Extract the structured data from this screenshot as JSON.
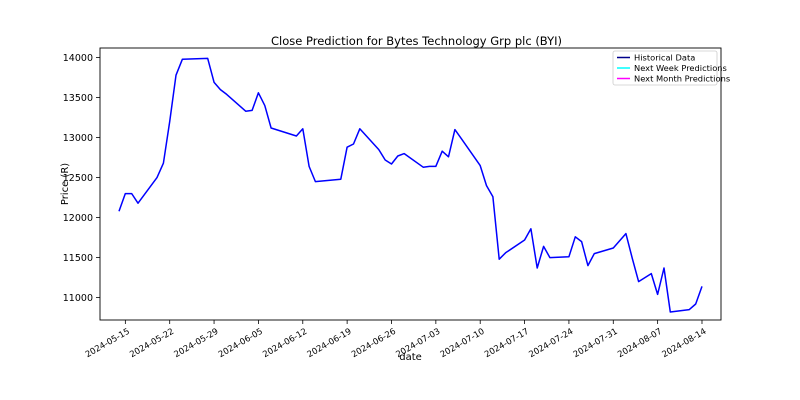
{
  "chart_data": {
    "type": "line",
    "title": "Close Prediction for Bytes Technology Grp plc (BYI)",
    "xlabel": "date",
    "ylabel": "Price (R)",
    "ylim": [
      10720,
      14120
    ],
    "y_ticks": [
      11000,
      11500,
      12000,
      12500,
      13000,
      13500,
      14000
    ],
    "x_ticks": [
      "2024-05-15",
      "2024-05-22",
      "2024-05-29",
      "2024-06-05",
      "2024-06-12",
      "2024-06-19",
      "2024-06-26",
      "2024-07-03",
      "2024-07-10",
      "2024-07-17",
      "2024-07-24",
      "2024-07-31",
      "2024-08-07",
      "2024-08-14"
    ],
    "x_range": [
      "2024-05-11",
      "2024-08-17"
    ],
    "legend_position": "top-right",
    "grid": false,
    "legend": [
      {
        "label": "Historical Data",
        "color": "#00008b"
      },
      {
        "label": "Next Week Predictions",
        "color": "#00ffff"
      },
      {
        "label": "Next Month Predictions",
        "color": "#ff00ff"
      }
    ],
    "series": [
      {
        "name": "Historical Data",
        "color": "#0000ff",
        "points": [
          [
            "2024-05-14",
            12080
          ],
          [
            "2024-05-15",
            12300
          ],
          [
            "2024-05-16",
            12300
          ],
          [
            "2024-05-17",
            12180
          ],
          [
            "2024-05-20",
            12500
          ],
          [
            "2024-05-21",
            12680
          ],
          [
            "2024-05-22",
            13200
          ],
          [
            "2024-05-23",
            13780
          ],
          [
            "2024-05-24",
            13980
          ],
          [
            "2024-05-28",
            13990
          ],
          [
            "2024-05-29",
            13690
          ],
          [
            "2024-05-30",
            13600
          ],
          [
            "2024-05-31",
            13540
          ],
          [
            "2024-06-03",
            13330
          ],
          [
            "2024-06-04",
            13340
          ],
          [
            "2024-06-05",
            13560
          ],
          [
            "2024-06-06",
            13400
          ],
          [
            "2024-06-07",
            13120
          ],
          [
            "2024-06-11",
            13020
          ],
          [
            "2024-06-12",
            13110
          ],
          [
            "2024-06-13",
            12640
          ],
          [
            "2024-06-14",
            12450
          ],
          [
            "2024-06-18",
            12480
          ],
          [
            "2024-06-19",
            12880
          ],
          [
            "2024-06-20",
            12920
          ],
          [
            "2024-06-21",
            13110
          ],
          [
            "2024-06-24",
            12850
          ],
          [
            "2024-06-25",
            12720
          ],
          [
            "2024-06-26",
            12670
          ],
          [
            "2024-06-27",
            12770
          ],
          [
            "2024-06-28",
            12800
          ],
          [
            "2024-07-01",
            12630
          ],
          [
            "2024-07-02",
            12640
          ],
          [
            "2024-07-03",
            12640
          ],
          [
            "2024-07-04",
            12830
          ],
          [
            "2024-07-05",
            12760
          ],
          [
            "2024-07-06",
            13100
          ],
          [
            "2024-07-07",
            12990
          ],
          [
            "2024-07-10",
            12650
          ],
          [
            "2024-07-11",
            12400
          ],
          [
            "2024-07-12",
            12260
          ],
          [
            "2024-07-13",
            11480
          ],
          [
            "2024-07-14",
            11560
          ],
          [
            "2024-07-17",
            11720
          ],
          [
            "2024-07-18",
            11860
          ],
          [
            "2024-07-19",
            11370
          ],
          [
            "2024-07-20",
            11640
          ],
          [
            "2024-07-21",
            11500
          ],
          [
            "2024-07-24",
            11510
          ],
          [
            "2024-07-25",
            11760
          ],
          [
            "2024-07-26",
            11700
          ],
          [
            "2024-07-27",
            11400
          ],
          [
            "2024-07-28",
            11550
          ],
          [
            "2024-07-31",
            11620
          ],
          [
            "2024-08-02",
            11800
          ],
          [
            "2024-08-03",
            11490
          ],
          [
            "2024-08-04",
            11200
          ],
          [
            "2024-08-06",
            11300
          ],
          [
            "2024-08-07",
            11040
          ],
          [
            "2024-08-08",
            11370
          ],
          [
            "2024-08-09",
            10820
          ],
          [
            "2024-08-12",
            10850
          ],
          [
            "2024-08-13",
            10920
          ],
          [
            "2024-08-14",
            11140
          ]
        ]
      }
    ]
  }
}
